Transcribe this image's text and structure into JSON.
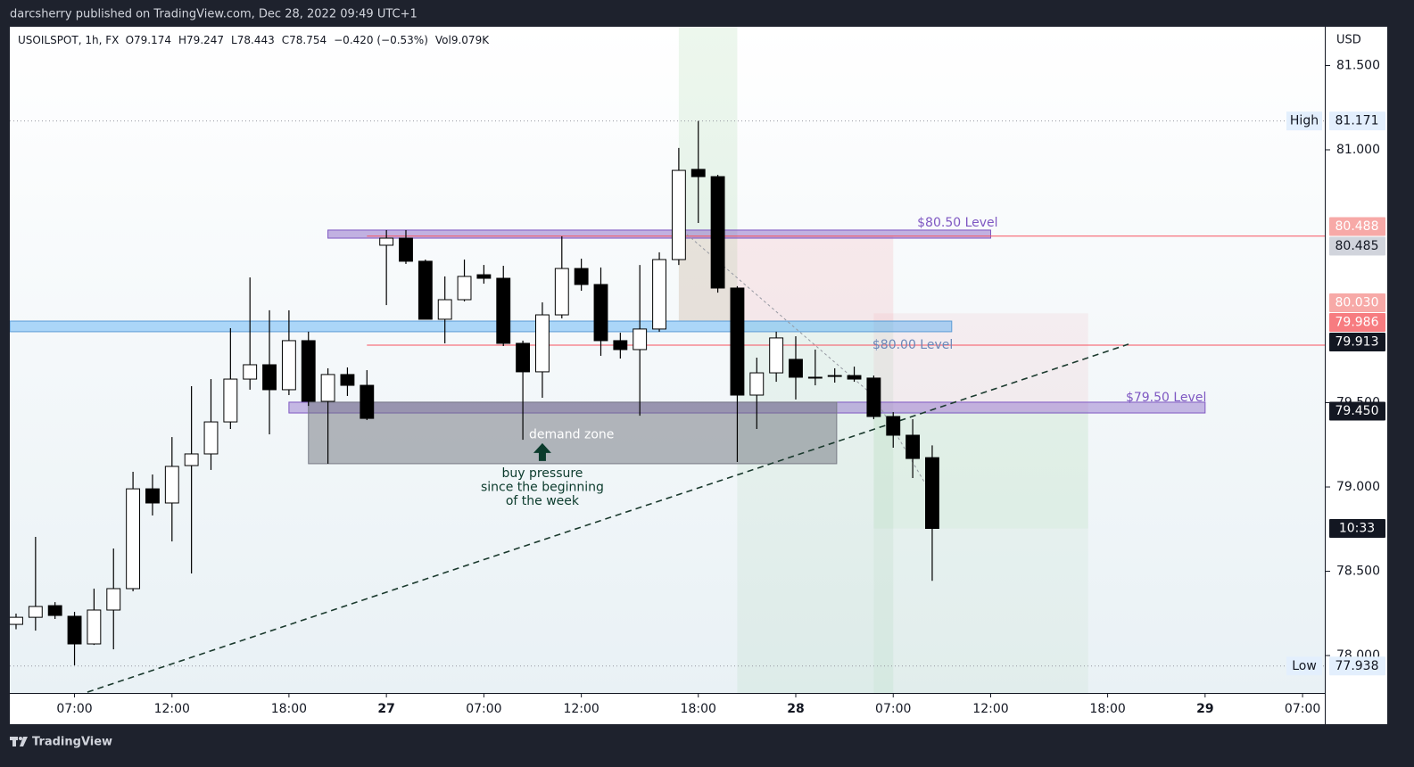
{
  "header": "darcsherry published on TradingView.com, Dec 28, 2022 09:49 UTC+1",
  "footer": "TradingView",
  "chart_data": {
    "type": "candlestick",
    "legend": {
      "symbol": "USOILSPOT, 1h, FX",
      "prefixes": [
        "O",
        "H",
        "L",
        "C"
      ],
      "change": "−0.420 (−0.53%)",
      "volume": "Vol9.079K"
    },
    "currency": "USD",
    "x": [
      0,
      1,
      2,
      3,
      4,
      5,
      6,
      7,
      8,
      9,
      10,
      11,
      12,
      13,
      14,
      15,
      16,
      17,
      18,
      19,
      20,
      21,
      22,
      23,
      24,
      25,
      26,
      27,
      28,
      29,
      30,
      31,
      32,
      33,
      34,
      35,
      36,
      37,
      38,
      39,
      40,
      41,
      42,
      43,
      44,
      45,
      46,
      47
    ],
    "open": [
      78.185,
      78.227,
      78.296,
      78.233,
      78.069,
      78.27,
      78.397,
      78.989,
      78.905,
      79.127,
      79.196,
      79.386,
      79.64,
      79.725,
      79.577,
      79.868,
      79.508,
      79.667,
      79.603,
      80.434,
      80.476,
      80.339,
      79.995,
      80.111,
      80.259,
      80.238,
      79.852,
      79.683,
      80.021,
      80.296,
      80.201,
      79.868,
      79.815,
      79.937,
      80.349,
      80.884,
      80.841,
      80.18,
      79.545,
      79.677,
      79.757,
      79.651,
      79.656,
      79.661,
      79.646,
      79.418,
      79.307,
      79.174
    ],
    "high": [
      78.249,
      78.704,
      78.317,
      78.259,
      78.397,
      78.635,
      79.09,
      79.074,
      79.296,
      79.598,
      79.64,
      79.942,
      80.243,
      80.048,
      80.048,
      79.921,
      79.704,
      79.709,
      79.693,
      80.524,
      80.524,
      80.349,
      80.249,
      80.349,
      80.317,
      80.312,
      79.868,
      80.095,
      80.487,
      80.354,
      80.302,
      79.915,
      80.317,
      80.392,
      81.011,
      81.171,
      80.852,
      80.191,
      79.767,
      79.921,
      79.894,
      79.815,
      79.704,
      79.714,
      79.661,
      79.444,
      79.402,
      79.247
    ],
    "low": [
      78.156,
      78.148,
      78.217,
      77.942,
      78.063,
      78.037,
      78.381,
      78.831,
      78.677,
      78.487,
      79.101,
      79.344,
      79.577,
      79.312,
      79.545,
      79.481,
      79.138,
      79.54,
      79.397,
      80.079,
      80.323,
      79.995,
      79.852,
      80.101,
      80.206,
      79.836,
      79.28,
      79.529,
      80.0,
      80.164,
      79.778,
      79.762,
      79.423,
      79.921,
      80.317,
      80.566,
      80.153,
      79.148,
      79.344,
      79.624,
      79.519,
      79.603,
      79.619,
      79.624,
      79.402,
      79.233,
      79.053,
      78.443
    ],
    "close": [
      78.227,
      78.291,
      78.238,
      78.069,
      78.27,
      78.397,
      78.989,
      78.905,
      79.122,
      79.196,
      79.386,
      79.64,
      79.725,
      79.577,
      79.868,
      79.508,
      79.667,
      79.603,
      79.407,
      80.476,
      80.339,
      79.995,
      80.111,
      80.249,
      80.238,
      79.852,
      79.683,
      80.021,
      80.296,
      80.201,
      79.868,
      79.815,
      79.937,
      80.349,
      80.878,
      80.841,
      80.18,
      79.545,
      79.677,
      79.884,
      79.651,
      79.646,
      79.661,
      79.64,
      79.418,
      79.307,
      79.169,
      78.754
    ],
    "up_color": "#ffffff",
    "down_color": "#000000",
    "xlim": [
      -0.32,
      67.14
    ],
    "xticks": [
      {
        "value": 3,
        "label": "07:00"
      },
      {
        "value": 8,
        "label": "12:00"
      },
      {
        "value": 14,
        "label": "18:00"
      },
      {
        "value": 19,
        "label": "27"
      },
      {
        "value": 24,
        "label": "07:00"
      },
      {
        "value": 29,
        "label": "12:00"
      },
      {
        "value": 35,
        "label": "18:00"
      },
      {
        "value": 40,
        "label": "28"
      },
      {
        "value": 45,
        "label": "07:00"
      },
      {
        "value": 50,
        "label": "12:00"
      },
      {
        "value": 56,
        "label": "18:00"
      },
      {
        "value": 61,
        "label": "29"
      },
      {
        "value": 66,
        "label": "07:00"
      }
    ],
    "ylim": [
      77.778,
      81.73
    ],
    "yticks": [
      {
        "value": 81.5,
        "label": "81.500"
      },
      {
        "value": 81,
        "label": "81.000"
      },
      {
        "value": 79.5,
        "label": "79.500"
      },
      {
        "value": 79,
        "label": "79.000"
      },
      {
        "value": 78.5,
        "label": "78.500"
      },
      {
        "value": 78,
        "label": "78.000"
      }
    ],
    "axis_labels": [
      {
        "value": 81.171,
        "label": "81.171",
        "note": "High",
        "bg": "#e3effd",
        "fg": "#131722"
      },
      {
        "value": 80.488,
        "label": "80.488",
        "bg": "#f7a9a7",
        "fg": "#ffffff"
      },
      {
        "value": 80.485,
        "label": "80.485",
        "bg": "#d1d4dc",
        "fg": "#131722"
      },
      {
        "value": 80.03,
        "label": "80.030",
        "bg": "#f7a9a7",
        "fg": "#ffffff"
      },
      {
        "value": 79.986,
        "label": "79.986",
        "bg": "#f77c80",
        "fg": "#ffffff"
      },
      {
        "value": 79.913,
        "label": "79.913",
        "bg": "#131722",
        "fg": "#ffffff"
      },
      {
        "value": 79.45,
        "label": "79.450",
        "bg": "#131722",
        "fg": "#ffffff"
      },
      {
        "value": 77.938,
        "label": "77.938",
        "note": "Low",
        "bg": "#e3effd",
        "fg": "#131722"
      }
    ],
    "countdown": "10:33",
    "rects": [
      {
        "x0": 34,
        "x1": 37,
        "y0": 79.986,
        "y1": 81.73,
        "fill": "rgba(76,175,80,0.10)"
      },
      {
        "x0": 34,
        "x1": 45,
        "y0": 79.986,
        "y1": 80.488,
        "fill": "rgba(242,54,69,0.09)"
      },
      {
        "x0": 37,
        "x1": 45,
        "y0": 77.778,
        "y1": 79.986,
        "fill": "rgba(76,175,80,0.07)"
      },
      {
        "x0": 44,
        "x1": 55,
        "y0": 79.45,
        "y1": 80.03,
        "fill": "rgba(242,54,69,0.06)"
      },
      {
        "x0": 44,
        "x1": 55,
        "y0": 78.754,
        "y1": 79.45,
        "fill": "rgba(76,175,80,0.10)"
      },
      {
        "x0": 44,
        "x1": 55,
        "y0": 77.778,
        "y1": 78.754,
        "fill": "rgba(76,175,80,0.05)"
      },
      {
        "x0": 16,
        "x1": 50,
        "y0": 80.476,
        "y1": 80.524,
        "fill": "rgba(126,87,194,0.45)",
        "stroke": "#7e57c2"
      },
      {
        "x0": -0.32,
        "x1": 48,
        "y0": 79.921,
        "y1": 79.984,
        "fill": "rgba(33,150,243,0.35)",
        "stroke": "#5b9bd5"
      },
      {
        "x0": 14,
        "x1": 61,
        "y0": 79.439,
        "y1": 79.503,
        "fill": "rgba(126,87,194,0.40)",
        "stroke": "#7e57c2"
      },
      {
        "x0": 15,
        "x1": 42.1,
        "y0": 79.138,
        "y1": 79.503,
        "fill": "rgba(110,113,124,0.50)",
        "stroke": "#787b86"
      }
    ],
    "lines": [
      {
        "x0": 18,
        "x1": 67.14,
        "y0": 80.488,
        "y1": 80.488,
        "color": "#f7525f",
        "dash": "none",
        "width": 1
      },
      {
        "x0": 18,
        "x1": 67.14,
        "y0": 79.841,
        "y1": 79.841,
        "color": "#f7525f",
        "dash": "none",
        "width": 1
      },
      {
        "x0": -0.32,
        "x1": 67.14,
        "y0": 81.171,
        "y1": 81.171,
        "color": "#9598a1",
        "dash": "1 3",
        "width": 1
      },
      {
        "x0": -0.32,
        "x1": 67.14,
        "y0": 77.938,
        "y1": 77.938,
        "color": "#9598a1",
        "dash": "1 3",
        "width": 1
      },
      {
        "x0": 3.66,
        "x1": 57.07,
        "y0": 77.783,
        "y1": 79.847,
        "color": "#1b3a2e",
        "dash": "7 5",
        "width": 1.6
      },
      {
        "x0": 34,
        "x1": 44,
        "y0": 80.54,
        "y1": 79.54,
        "color": "#9598a1",
        "dash": "3 3",
        "width": 1
      },
      {
        "x0": 44,
        "x1": 47,
        "y0": 79.54,
        "y1": 78.95,
        "color": "#9598a1",
        "dash": "3 3",
        "width": 1
      }
    ],
    "texts": [
      {
        "text": "$80.50 Level",
        "x": 48.3,
        "y": 80.565,
        "color": "#7e57c2"
      },
      {
        "text": "$80.00 Level",
        "x": 46,
        "y": 79.84,
        "color": "#6a87b8"
      },
      {
        "text": "$79.50 Level",
        "x": 59,
        "y": 79.53,
        "color": "#7e57c2"
      },
      {
        "text": "demand zone",
        "x": 28.5,
        "y": 79.31,
        "color": "#ffffff"
      }
    ],
    "note": {
      "lines": [
        "buy pressure",
        "since the beginning",
        "of the week"
      ],
      "x": 27,
      "y": 79.08,
      "color": "#0b3b2c"
    }
  }
}
